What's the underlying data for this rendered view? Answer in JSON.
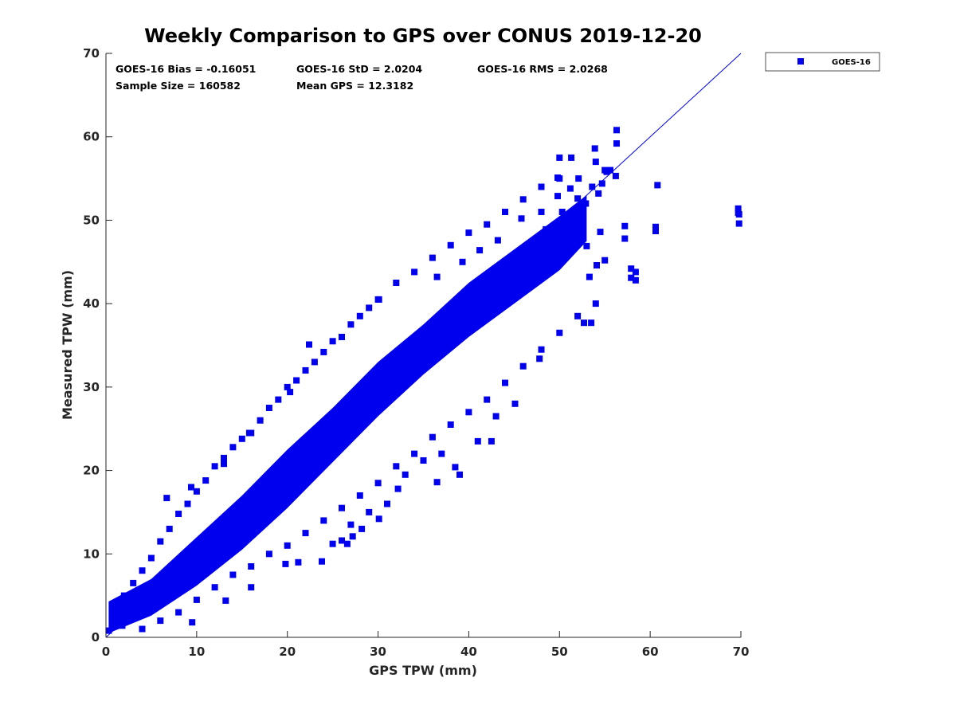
{
  "chart_data": {
    "type": "scatter",
    "title": "Weekly Comparison to GPS over CONUS 2019-12-20",
    "xlabel": "GPS TPW (mm)",
    "ylabel": "Measured TPW (mm)",
    "xlim": [
      0,
      70
    ],
    "ylim": [
      0,
      70
    ],
    "xticks": [
      "0",
      "10",
      "20",
      "30",
      "40",
      "50",
      "60",
      "70"
    ],
    "yticks": [
      "0",
      "10",
      "20",
      "30",
      "40",
      "50",
      "60",
      "70"
    ],
    "grid": false,
    "legend_position": "outside-top-right",
    "series": [
      {
        "name": "GOES-16",
        "color": "#0000ee",
        "marker": "square",
        "points": [
          [
            0.3,
            0.8
          ],
          [
            0.8,
            1.6
          ],
          [
            1.2,
            2.2
          ],
          [
            1.8,
            1.4
          ],
          [
            2.3,
            3.1
          ],
          [
            2.9,
            2.4
          ],
          [
            3.4,
            4.0
          ],
          [
            4.1,
            3.3
          ],
          [
            4.6,
            5.2
          ],
          [
            5.2,
            4.6
          ],
          [
            5.8,
            6.1
          ],
          [
            6.3,
            5.4
          ],
          [
            7.0,
            7.3
          ],
          [
            7.6,
            6.6
          ],
          [
            8.2,
            8.5
          ],
          [
            8.8,
            7.9
          ],
          [
            9.4,
            9.8
          ],
          [
            10.0,
            9.2
          ],
          [
            10.7,
            11.0
          ],
          [
            11.3,
            10.3
          ],
          [
            12.0,
            12.4
          ],
          [
            12.6,
            11.8
          ],
          [
            13.3,
            13.6
          ],
          [
            14.0,
            13.1
          ],
          [
            14.6,
            15.0
          ],
          [
            15.3,
            14.4
          ],
          [
            16.0,
            16.3
          ],
          [
            16.7,
            15.6
          ],
          [
            17.4,
            17.9
          ],
          [
            18.1,
            17.2
          ],
          [
            18.8,
            19.3
          ],
          [
            19.6,
            18.6
          ],
          [
            20.3,
            20.8
          ],
          [
            21.0,
            20.0
          ],
          [
            21.8,
            22.4
          ],
          [
            22.6,
            21.5
          ],
          [
            23.4,
            23.9
          ],
          [
            24.2,
            23.2
          ],
          [
            25.0,
            25.4
          ],
          [
            25.8,
            24.6
          ],
          [
            26.6,
            27.1
          ],
          [
            27.4,
            26.3
          ],
          [
            28.3,
            28.8
          ],
          [
            29.1,
            28.0
          ],
          [
            30.0,
            30.4
          ],
          [
            30.8,
            29.7
          ],
          [
            31.7,
            32.1
          ],
          [
            32.6,
            31.3
          ],
          [
            33.5,
            34.0
          ],
          [
            34.4,
            33.1
          ],
          [
            35.3,
            35.8
          ],
          [
            36.2,
            34.9
          ],
          [
            37.1,
            37.6
          ],
          [
            38.0,
            36.8
          ],
          [
            39.0,
            39.5
          ],
          [
            39.9,
            38.7
          ],
          [
            40.9,
            41.3
          ],
          [
            41.8,
            40.5
          ],
          [
            42.8,
            43.2
          ],
          [
            43.7,
            42.4
          ],
          [
            44.7,
            45.1
          ],
          [
            45.6,
            44.2
          ],
          [
            46.6,
            47.0
          ],
          [
            47.5,
            46.2
          ],
          [
            48.5,
            48.9
          ],
          [
            49.4,
            48.0
          ],
          [
            50.3,
            51.0
          ],
          [
            51.2,
            50.1
          ],
          [
            52.0,
            52.6
          ],
          [
            52.9,
            52.0
          ],
          [
            53.6,
            54.0
          ],
          [
            54.3,
            53.2
          ],
          [
            55.2,
            55.8
          ],
          [
            1.0,
            3.5
          ],
          [
            2.0,
            5.0
          ],
          [
            3.0,
            6.5
          ],
          [
            4.0,
            8.0
          ],
          [
            5.0,
            9.5
          ],
          [
            6.0,
            11.5
          ],
          [
            7.0,
            13.0
          ],
          [
            8.0,
            14.8
          ],
          [
            9.0,
            16.0
          ],
          [
            10.0,
            17.5
          ],
          [
            11.0,
            18.8
          ],
          [
            12.0,
            20.5
          ],
          [
            13.0,
            21.5
          ],
          [
            14.0,
            22.8
          ],
          [
            15.0,
            23.8
          ],
          [
            16.0,
            24.5
          ],
          [
            17.0,
            26.0
          ],
          [
            18.0,
            27.5
          ],
          [
            19.0,
            28.5
          ],
          [
            20.0,
            30.0
          ],
          [
            21.0,
            30.8
          ],
          [
            22.0,
            32.0
          ],
          [
            23.0,
            33.0
          ],
          [
            24.0,
            34.2
          ],
          [
            25.0,
            35.5
          ],
          [
            26.0,
            36.0
          ],
          [
            27.0,
            37.5
          ],
          [
            28.0,
            38.5
          ],
          [
            29.0,
            39.5
          ],
          [
            30.0,
            40.5
          ],
          [
            32.0,
            42.5
          ],
          [
            34.0,
            43.8
          ],
          [
            36.0,
            45.5
          ],
          [
            38.0,
            47.0
          ],
          [
            40.0,
            48.5
          ],
          [
            42.0,
            49.5
          ],
          [
            44.0,
            51.0
          ],
          [
            46.0,
            52.5
          ],
          [
            48.0,
            54.0
          ],
          [
            50.0,
            55.0
          ],
          [
            4.0,
            1.0
          ],
          [
            6.0,
            2.0
          ],
          [
            8.0,
            3.0
          ],
          [
            10.0,
            4.5
          ],
          [
            12.0,
            6.0
          ],
          [
            14.0,
            7.5
          ],
          [
            16.0,
            8.5
          ],
          [
            18.0,
            10.0
          ],
          [
            20.0,
            11.0
          ],
          [
            22.0,
            12.5
          ],
          [
            24.0,
            14.0
          ],
          [
            26.0,
            15.5
          ],
          [
            28.0,
            17.0
          ],
          [
            30.0,
            18.5
          ],
          [
            32.0,
            20.5
          ],
          [
            34.0,
            22.0
          ],
          [
            36.0,
            24.0
          ],
          [
            38.0,
            25.5
          ],
          [
            40.0,
            27.0
          ],
          [
            42.0,
            28.5
          ],
          [
            44.0,
            30.5
          ],
          [
            46.0,
            32.5
          ],
          [
            48.0,
            34.5
          ],
          [
            50.0,
            36.5
          ],
          [
            52.0,
            38.5
          ],
          [
            54.0,
            40.0
          ],
          [
            25.0,
            11.2
          ],
          [
            27.0,
            13.5
          ],
          [
            29.0,
            15.0
          ],
          [
            31.0,
            16.0
          ],
          [
            33.0,
            19.5
          ],
          [
            35.0,
            21.2
          ],
          [
            37.0,
            22.0
          ],
          [
            39.0,
            19.5
          ],
          [
            41.0,
            23.5
          ],
          [
            43.0,
            26.5
          ],
          [
            26.6,
            11.2
          ],
          [
            28.2,
            13.0
          ],
          [
            30.1,
            14.2
          ],
          [
            32.2,
            17.8
          ],
          [
            36.5,
            18.6
          ],
          [
            38.5,
            20.4
          ],
          [
            42.5,
            23.5
          ],
          [
            45.1,
            28.0
          ],
          [
            47.8,
            33.4
          ],
          [
            52.7,
            37.7
          ],
          [
            53.5,
            37.7
          ],
          [
            53.3,
            43.2
          ],
          [
            54.1,
            44.6
          ],
          [
            53.0,
            46.9
          ],
          [
            55.0,
            45.2
          ],
          [
            54.5,
            48.6
          ],
          [
            9.5,
            1.8
          ],
          [
            13.2,
            4.4
          ],
          [
            16.0,
            6.0
          ],
          [
            19.8,
            8.8
          ],
          [
            21.2,
            9.0
          ],
          [
            23.8,
            9.1
          ],
          [
            26.0,
            11.6
          ],
          [
            27.2,
            12.1
          ],
          [
            6.7,
            16.7
          ],
          [
            9.4,
            18.0
          ],
          [
            13.0,
            20.8
          ],
          [
            15.8,
            24.5
          ],
          [
            20.3,
            29.4
          ],
          [
            22.4,
            35.1
          ],
          [
            30.1,
            40.5
          ],
          [
            36.5,
            43.2
          ],
          [
            39.3,
            45.0
          ],
          [
            41.2,
            46.4
          ],
          [
            43.2,
            47.6
          ],
          [
            45.8,
            50.2
          ],
          [
            48.0,
            51.0
          ],
          [
            49.8,
            52.9
          ],
          [
            51.2,
            53.8
          ],
          [
            56.3,
            60.8
          ],
          [
            56.3,
            59.2
          ],
          [
            53.9,
            58.6
          ],
          [
            51.3,
            57.5
          ],
          [
            50.0,
            57.5
          ],
          [
            54.0,
            57.0
          ],
          [
            55.0,
            56.0
          ],
          [
            49.8,
            55.1
          ],
          [
            52.1,
            55.0
          ],
          [
            55.6,
            56.0
          ],
          [
            54.7,
            54.4
          ],
          [
            56.2,
            55.3
          ],
          [
            57.2,
            49.3
          ],
          [
            57.2,
            47.8
          ],
          [
            57.9,
            44.2
          ],
          [
            58.4,
            43.8
          ],
          [
            57.9,
            43.1
          ],
          [
            58.4,
            42.8
          ],
          [
            60.6,
            49.2
          ],
          [
            60.6,
            48.7
          ],
          [
            60.8,
            54.2
          ],
          [
            69.7,
            51.4
          ],
          [
            69.7,
            50.9
          ],
          [
            69.8,
            50.7
          ],
          [
            69.8,
            49.6
          ]
        ]
      }
    ],
    "fit_line": {
      "x": [
        0,
        70
      ],
      "y": [
        0,
        70
      ],
      "color": "#0000ee"
    },
    "annotations": [
      "GOES-16 Bias = -0.16051",
      "GOES-16 StD = 2.0204",
      "GOES-16 RMS = 2.0268",
      "Sample Size = 160582",
      "Mean GPS = 12.3182"
    ]
  }
}
